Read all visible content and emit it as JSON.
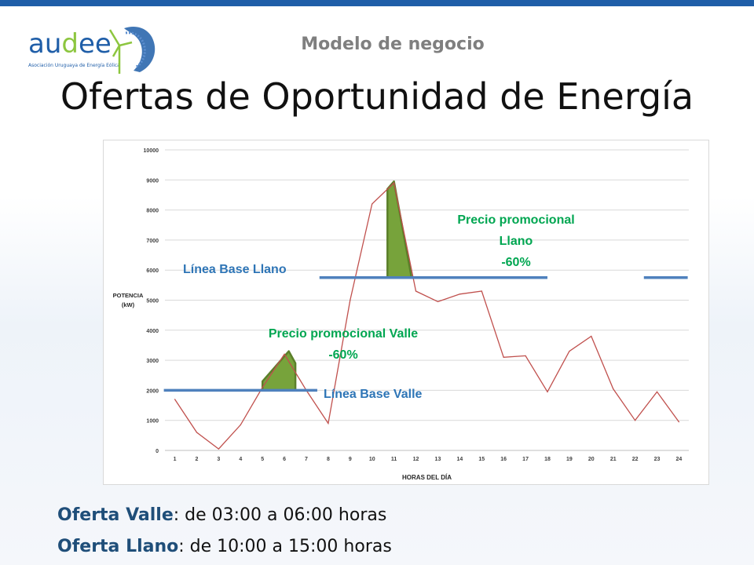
{
  "header": {
    "logo_prefix": "au",
    "logo_highlight": "d",
    "logo_suffix": "ee",
    "logo_subtitle": "Asociación Uruguaya de Energía Eólica",
    "section_title": "Modelo de negocio",
    "main_title": "Ofertas de Oportunidad de Energía"
  },
  "chart_data": {
    "type": "line",
    "x": [
      1,
      2,
      3,
      4,
      5,
      6,
      7,
      8,
      9,
      10,
      11,
      12,
      13,
      14,
      15,
      16,
      17,
      18,
      19,
      20,
      21,
      22,
      23,
      24
    ],
    "series": [
      {
        "values": [
          1700,
          600,
          50,
          850,
          2100,
          3200,
          2000,
          900,
          5000,
          8200,
          8900,
          5300,
          4950,
          5200,
          5300,
          3100,
          3150,
          1950,
          3300,
          3800,
          2050,
          1000,
          1950,
          950
        ]
      }
    ],
    "xlabel": "HORAS DEL DÍA",
    "ylabel": "POTENCIA (kW)",
    "ylabel_line1": "POTENCIA",
    "ylabel_line2": "(kW)",
    "xlim": [
      1,
      24
    ],
    "ylim": [
      0,
      10000
    ],
    "y_ticks": [
      0,
      1000,
      2000,
      3000,
      4000,
      5000,
      6000,
      7000,
      8000,
      9000,
      10000
    ],
    "x_ticks": [
      "1",
      "2",
      "3",
      "4",
      "5",
      "6",
      "7",
      "8",
      "9",
      "10",
      "11",
      "12",
      "13",
      "14",
      "15",
      "16",
      "17",
      "18",
      "19",
      "20",
      "21",
      "22",
      "23",
      "24"
    ],
    "grid": "horizontal",
    "colors": {
      "line": "#c0504d",
      "baseline": "#4f81bd",
      "promo_fill": "#77a33b",
      "promo_stroke": "#5b7f2a",
      "grid": "#d9d9d9",
      "tick_text": "#404040"
    },
    "baselines": [
      {
        "name": "Línea Base Valle",
        "value": 2000,
        "x_from": 0.5,
        "x_to": 7.5
      },
      {
        "name": "Línea Base Llano",
        "value": 5750,
        "x_from": 7.6,
        "x_to": 18
      },
      {
        "name": "Línea Base Llano",
        "value": 5750,
        "x_from": 22.4,
        "x_to": 24.4
      }
    ],
    "promo_areas": [
      {
        "name": "Valle",
        "points": [
          [
            5.0,
            2000
          ],
          [
            5.0,
            2300
          ],
          [
            6.2,
            3300
          ],
          [
            6.5,
            2900
          ],
          [
            6.5,
            2000
          ]
        ]
      },
      {
        "name": "Llano",
        "points": [
          [
            10.7,
            5750
          ],
          [
            10.7,
            8700
          ],
          [
            11.0,
            8950
          ],
          [
            11.8,
            5750
          ]
        ]
      }
    ],
    "annotations": {
      "baseline_llano": "Línea Base Llano",
      "baseline_valle": "Línea Base Valle",
      "promo_llano_l1": "Precio promocional",
      "promo_llano_l2": "Llano",
      "promo_llano_l3": "-60%",
      "promo_valle_l1": "Precio promocional Valle",
      "promo_valle_l2": "-60%"
    }
  },
  "footer": {
    "valle_key": "Oferta Valle",
    "valle_text": ": de 03:00 a 06:00 horas",
    "llano_key": "Oferta Llano",
    "llano_text": ": de 10:00 a 15:00 horas"
  }
}
